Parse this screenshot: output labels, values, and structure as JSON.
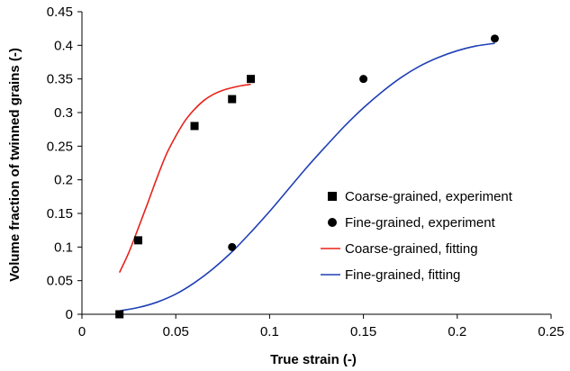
{
  "chart_data": {
    "type": "scatter",
    "xlabel": "True strain (-)",
    "ylabel": "Volume fraction of twinned grains (-)",
    "xlim": [
      0,
      0.25
    ],
    "ylim": [
      0,
      0.45
    ],
    "xticks": [
      "0",
      "0.05",
      "0.1",
      "0.15",
      "0.2",
      "0.25"
    ],
    "yticks": [
      "0",
      "0.05",
      "0.1",
      "0.15",
      "0.2",
      "0.25",
      "0.3",
      "0.35",
      "0.4",
      "0.45"
    ],
    "grid": false,
    "legend_position": "right",
    "series": [
      {
        "name": "Coarse-grained, experiment",
        "kind": "markers",
        "marker": "square",
        "color": "#000000",
        "x": [
          0.02,
          0.03,
          0.06,
          0.08,
          0.09
        ],
        "y": [
          0.0,
          0.11,
          0.28,
          0.32,
          0.35
        ]
      },
      {
        "name": "Fine-grained, experiment",
        "kind": "markers",
        "marker": "circle",
        "color": "#000000",
        "x": [
          0.02,
          0.08,
          0.15,
          0.22
        ],
        "y": [
          0.0,
          0.1,
          0.35,
          0.41
        ]
      },
      {
        "name": "Coarse-grained, fitting",
        "kind": "line",
        "color": "#e8231c",
        "x": [
          0.02,
          0.025,
          0.03,
          0.035,
          0.04,
          0.045,
          0.05,
          0.055,
          0.06,
          0.065,
          0.07,
          0.075,
          0.08,
          0.085,
          0.09
        ],
        "y": [
          0.062,
          0.092,
          0.128,
          0.165,
          0.203,
          0.238,
          0.265,
          0.288,
          0.305,
          0.318,
          0.327,
          0.333,
          0.337,
          0.34,
          0.342
        ]
      },
      {
        "name": "Fine-grained, fitting",
        "kind": "line",
        "color": "#1f3fb5",
        "x": [
          0.02,
          0.03,
          0.04,
          0.05,
          0.06,
          0.07,
          0.08,
          0.09,
          0.1,
          0.11,
          0.12,
          0.13,
          0.14,
          0.15,
          0.16,
          0.17,
          0.18,
          0.19,
          0.2,
          0.21,
          0.22
        ],
        "y": [
          0.005,
          0.01,
          0.018,
          0.03,
          0.047,
          0.068,
          0.093,
          0.122,
          0.153,
          0.186,
          0.219,
          0.25,
          0.28,
          0.307,
          0.331,
          0.352,
          0.369,
          0.382,
          0.392,
          0.399,
          0.403
        ]
      }
    ]
  }
}
